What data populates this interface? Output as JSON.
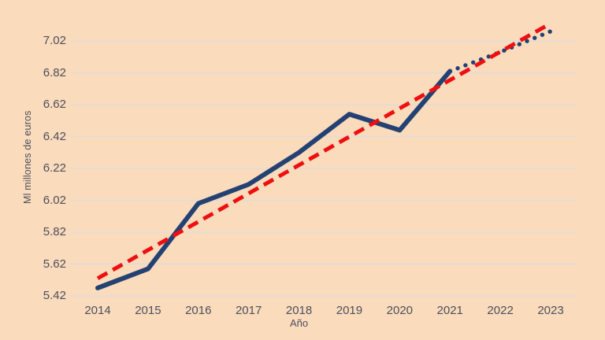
{
  "background_color": "#fadbbc",
  "text_color": "#4c4f5e",
  "gridline_color": "#dcdce2",
  "chart_data": {
    "type": "line",
    "title": "",
    "xlabel": "Año",
    "ylabel": "Ml millones de euros",
    "x": [
      2014,
      2015,
      2016,
      2017,
      2018,
      2019,
      2020,
      2021,
      2022,
      2023
    ],
    "yticks": [
      5.42,
      5.62,
      5.82,
      6.02,
      6.22,
      6.42,
      6.62,
      6.82,
      7.02
    ],
    "ylim": [
      5.42,
      7.02
    ],
    "grid": "horizontal-only",
    "legend": "none",
    "series": [
      {
        "name": "valores-reales",
        "style": "solid",
        "color": "#234273",
        "x": [
          2014,
          2015,
          2016,
          2017,
          2018,
          2019,
          2020,
          2021
        ],
        "values": [
          5.47,
          5.59,
          6.0,
          6.12,
          6.32,
          6.56,
          6.46,
          6.83
        ]
      },
      {
        "name": "proyeccion-punteada",
        "style": "dotted",
        "color": "#234273",
        "x": [
          2021,
          2022,
          2023
        ],
        "values": [
          6.83,
          6.95,
          7.08
        ]
      },
      {
        "name": "linea-tendencia",
        "style": "dashed",
        "color": "#ee1010",
        "x": [
          2014,
          2023
        ],
        "values": [
          5.53,
          7.13
        ]
      }
    ]
  }
}
